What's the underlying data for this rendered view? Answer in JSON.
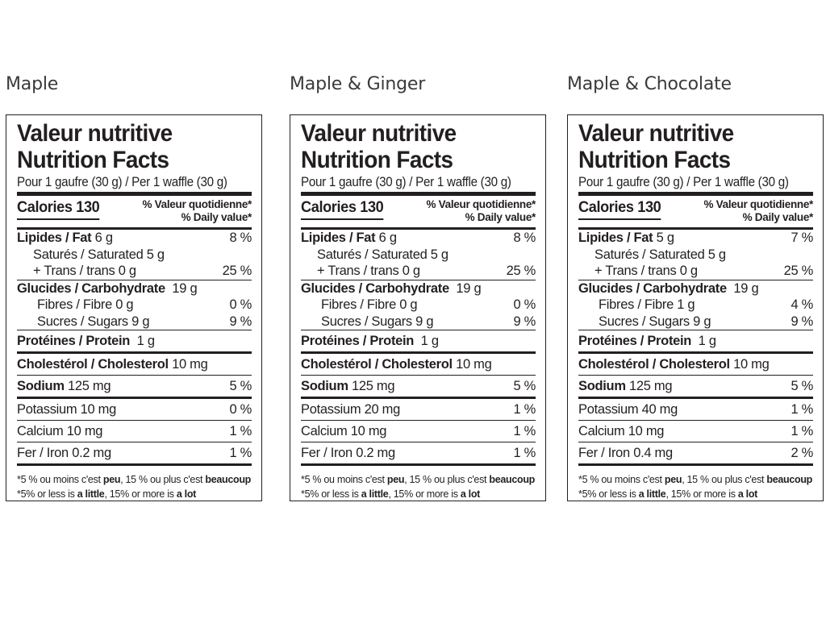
{
  "panels": [
    {
      "flavor": "Maple",
      "title_fr": "Valeur nutritive",
      "title_en": "Nutrition Facts",
      "serving": "Pour 1 gaufre (30 g) / Per 1 waffle (30 g)",
      "calories": "Calories 130",
      "dv_header_fr": "% Valeur quotidienne*",
      "dv_header_en": "% Daily value*",
      "fat_label": "Lipides / Fat",
      "fat_amount": "6 g",
      "fat_dv": "8 %",
      "sat_label": "Saturés / Saturated 5 g",
      "trans_label": "+ Trans / trans 0 g",
      "sat_trans_dv": "25 %",
      "carb_label": "Glucides / Carbohydrate",
      "carb_amount": "19 g",
      "fibre_label": "Fibres / Fibre 0 g",
      "fibre_dv": "0 %",
      "sugars_label": "Sucres / Sugars 9 g",
      "sugars_dv": "9 %",
      "protein_label": "Protéines / Protein",
      "protein_amount": "1 g",
      "chol_label": "Cholestérol / Cholesterol",
      "chol_amount": "10 mg",
      "sodium_label": "Sodium",
      "sodium_amount": "125 mg",
      "sodium_dv": "5 %",
      "potassium": "Potassium 10 mg",
      "potassium_dv": "0 %",
      "calcium": "Calcium 10 mg",
      "calcium_dv": "1 %",
      "iron": "Fer / Iron 0.2 mg",
      "iron_dv": "1 %"
    },
    {
      "flavor": "Maple & Ginger",
      "title_fr": "Valeur nutritive",
      "title_en": "Nutrition Facts",
      "serving": "Pour 1 gaufre (30 g) / Per 1 waffle (30 g)",
      "calories": "Calories 130",
      "dv_header_fr": "% Valeur quotidienne*",
      "dv_header_en": "% Daily value*",
      "fat_label": "Lipides / Fat",
      "fat_amount": "6 g",
      "fat_dv": "8 %",
      "sat_label": "Saturés / Saturated 5 g",
      "trans_label": "+ Trans / trans 0 g",
      "sat_trans_dv": "25 %",
      "carb_label": "Glucides / Carbohydrate",
      "carb_amount": "19 g",
      "fibre_label": "Fibres / Fibre 0 g",
      "fibre_dv": "0 %",
      "sugars_label": "Sucres / Sugars 9 g",
      "sugars_dv": "9 %",
      "protein_label": "Protéines / Protein",
      "protein_amount": "1 g",
      "chol_label": "Cholestérol / Cholesterol",
      "chol_amount": "10 mg",
      "sodium_label": "Sodium",
      "sodium_amount": "125 mg",
      "sodium_dv": "5 %",
      "potassium": "Potassium 20 mg",
      "potassium_dv": "1 %",
      "calcium": "Calcium 10 mg",
      "calcium_dv": "1 %",
      "iron": "Fer / Iron 0.2 mg",
      "iron_dv": "1 %"
    },
    {
      "flavor": "Maple & Chocolate",
      "title_fr": "Valeur nutritive",
      "title_en": "Nutrition Facts",
      "serving": "Pour 1 gaufre (30 g) / Per 1 waffle (30 g)",
      "calories": "Calories 130",
      "dv_header_fr": "% Valeur quotidienne*",
      "dv_header_en": "% Daily value*",
      "fat_label": "Lipides / Fat",
      "fat_amount": "5 g",
      "fat_dv": "7 %",
      "sat_label": "Saturés / Saturated 5 g",
      "trans_label": "+ Trans / trans 0 g",
      "sat_trans_dv": "25 %",
      "carb_label": "Glucides / Carbohydrate",
      "carb_amount": "19 g",
      "fibre_label": "Fibres / Fibre 1 g",
      "fibre_dv": "4 %",
      "sugars_label": "Sucres / Sugars 9 g",
      "sugars_dv": "9 %",
      "protein_label": "Protéines / Protein",
      "protein_amount": "1 g",
      "chol_label": "Cholestérol / Cholesterol",
      "chol_amount": "10 mg",
      "sodium_label": "Sodium",
      "sodium_amount": "125 mg",
      "sodium_dv": "5 %",
      "potassium": "Potassium 40 mg",
      "potassium_dv": "1 %",
      "calcium": "Calcium 10 mg",
      "calcium_dv": "1 %",
      "iron": "Fer / Iron 0.4 mg",
      "iron_dv": "2 %"
    }
  ],
  "footnote": {
    "fr_pre": "*5 % ou moins c'est ",
    "fr_b1": "peu",
    "fr_mid": ", 15 % ou plus c'est ",
    "fr_b2": "beaucoup",
    "en_pre": "*5% or less is ",
    "en_b1": "a little",
    "en_mid": ", 15% or more is ",
    "en_b2": "a lot"
  },
  "colors": {
    "ink": "#231f20",
    "flavor_text": "#3a3a3a",
    "background": "#ffffff"
  }
}
